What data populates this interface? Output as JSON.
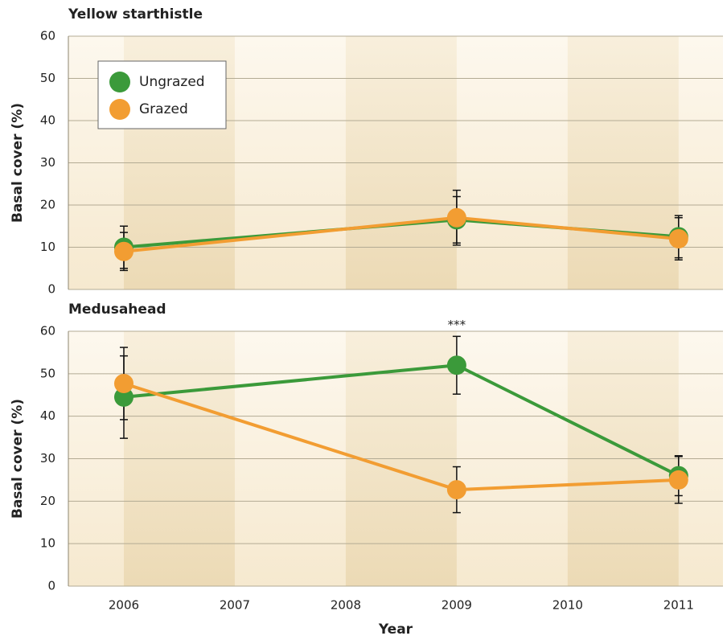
{
  "chart_data": [
    {
      "type": "line",
      "title": "Yellow starthistle",
      "ylabel": "Basal cover (%)",
      "x": [
        2006,
        2009,
        2011
      ],
      "series": [
        {
          "name": "Ungrazed",
          "color": "#3b9a3a",
          "values": [
            10,
            16.5,
            12.5
          ],
          "errors": [
            5,
            5.5,
            5
          ]
        },
        {
          "name": "Grazed",
          "color": "#f29d32",
          "values": [
            9,
            17,
            12
          ],
          "errors": [
            4.5,
            6.5,
            5
          ]
        }
      ],
      "xlim": [
        2005.5,
        2011.4
      ],
      "xticks": [
        2006,
        2007,
        2008,
        2009,
        2010,
        2011
      ],
      "ylim": [
        0,
        60
      ],
      "yticks": [
        0,
        10,
        20,
        30,
        40,
        50,
        60
      ],
      "grid": true,
      "legend": "upper left"
    },
    {
      "type": "line",
      "title": "Medusahead",
      "ylabel": "Basal cover (%)",
      "xlabel": "Year",
      "x": [
        2006,
        2009,
        2011
      ],
      "series": [
        {
          "name": "Ungrazed",
          "color": "#3b9a3a",
          "values": [
            44.5,
            52,
            26
          ],
          "errors": [
            9.7,
            6.8,
            4.7
          ]
        },
        {
          "name": "Grazed",
          "color": "#f29d32",
          "values": [
            47.7,
            22.7,
            25
          ],
          "errors": [
            8.5,
            5.4,
            5.5
          ]
        }
      ],
      "annotations": [
        {
          "text": "***",
          "x": 2009
        }
      ],
      "xlim": [
        2005.5,
        2011.4
      ],
      "xticks": [
        2006,
        2007,
        2008,
        2009,
        2010,
        2011
      ],
      "ylim": [
        0,
        60
      ],
      "yticks": [
        0,
        10,
        20,
        30,
        40,
        50,
        60
      ],
      "grid": true
    }
  ]
}
